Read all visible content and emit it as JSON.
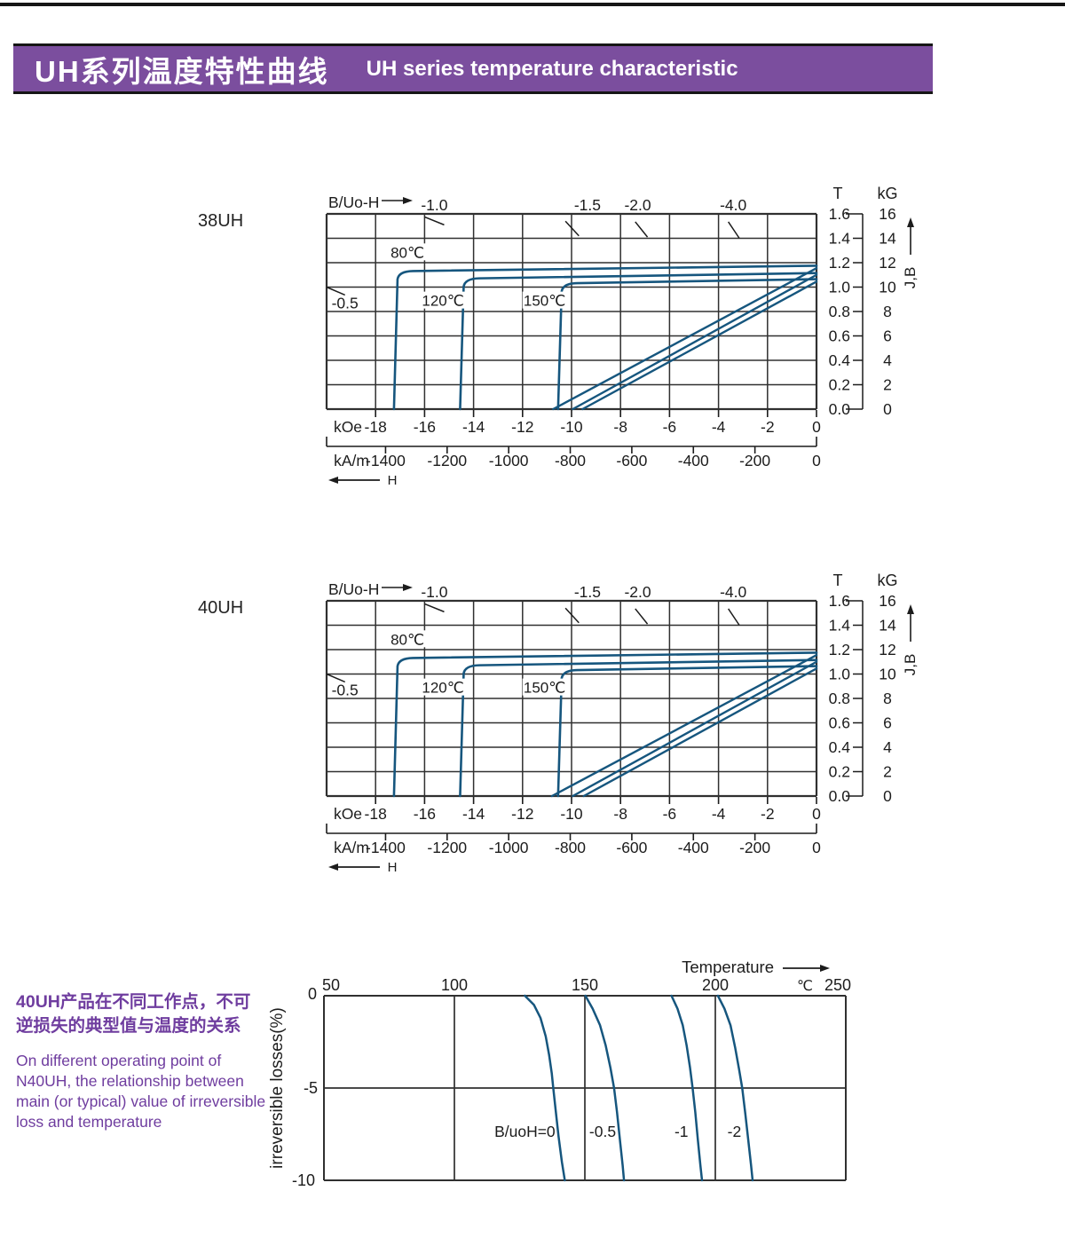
{
  "header": {
    "title_cn": "UH系列温度特性曲线",
    "title_en": "UH series temperature characteristic"
  },
  "colors": {
    "header_purple": "#7b4e9e",
    "note_purple": "#6f3d9f",
    "curve_blue": "#16567e",
    "grid_dark": "#303030"
  },
  "note": {
    "cn_lines": [
      "40UH产品在不同工作点，不可",
      "逆损失的典型值与温度的关系"
    ],
    "en_lines": [
      "On different operating point of",
      "N40UH,  the relationship between",
      "main (or typical) value of irreversible",
      "loss and temperature"
    ]
  },
  "chart_data": [
    {
      "type": "line",
      "id": "bh-38uh",
      "title": "38UH",
      "top_axis_label": "B/Uo-H",
      "x_axis": {
        "primary_unit": "kOe",
        "primary_ticks": [
          -18,
          -16,
          -14,
          -12,
          -10,
          -8,
          -6,
          -4,
          -2,
          0
        ],
        "secondary_unit": "kA/m",
        "secondary_ticks": [
          -1400,
          -1200,
          -1000,
          -800,
          -600,
          -400,
          -200,
          0
        ],
        "arrow_label": "H",
        "xlim_kOe": [
          -20,
          0
        ]
      },
      "y_axis": {
        "left_unit": "T",
        "left_ticks": [
          "1.6",
          "1.4",
          "1.2",
          "1.0",
          "0.8",
          "0.6",
          "0.4",
          "0.2",
          "0.0"
        ],
        "right_unit": "kG",
        "right_ticks": [
          "16",
          "14",
          "12",
          "10",
          "8",
          "6",
          "4",
          "2",
          "0"
        ],
        "arrow_label": "J,B",
        "ylim_T": [
          0,
          1.6
        ]
      },
      "load_lines": [
        {
          "label": "-1.0",
          "label_x_kOe": -15.6,
          "tick": [
            -16.0,
            1.575,
            -15.2,
            1.51
          ]
        },
        {
          "label": "-1.5",
          "label_x_kOe": -9.35,
          "tick": [
            -10.25,
            1.54,
            -9.7,
            1.42
          ]
        },
        {
          "label": "-2.0",
          "label_x_kOe": -7.3,
          "tick": [
            -7.4,
            1.535,
            -6.9,
            1.41
          ]
        },
        {
          "label": "-4.0",
          "label_x_kOe": -3.4,
          "tick": [
            -3.6,
            1.535,
            -3.15,
            1.4
          ]
        },
        {
          "label": "-0.5",
          "label_pos": [
            -19.25,
            0.87
          ],
          "tick": [
            -20.0,
            1.0,
            -19.25,
            0.935
          ]
        }
      ],
      "series": [
        {
          "name": "80℃",
          "label_pos": [
            -16.7,
            1.285
          ],
          "j_curve": {
            "leg_bottom_kOe": -17.25,
            "knee_kOe": -17.05,
            "j_at_knee_T": 1.13,
            "j_at_H0_T": 1.175
          },
          "b_line": {
            "h_at_B0_kOe": -10.75,
            "br_T": 1.155
          }
        },
        {
          "name": "120℃",
          "label_pos": [
            -15.25,
            0.89
          ],
          "j_curve": {
            "leg_bottom_kOe": -14.55,
            "knee_kOe": -14.35,
            "j_at_knee_T": 1.07,
            "j_at_H0_T": 1.115
          },
          "b_line": {
            "h_at_B0_kOe": -9.95,
            "br_T": 1.1
          }
        },
        {
          "name": "150℃",
          "label_pos": [
            -11.1,
            0.89
          ],
          "j_curve": {
            "leg_bottom_kOe": -10.55,
            "knee_kOe": -10.35,
            "j_at_knee_T": 1.03,
            "j_at_H0_T": 1.065
          },
          "b_line": {
            "h_at_B0_kOe": -9.55,
            "br_T": 1.045
          }
        }
      ]
    },
    {
      "type": "line",
      "id": "bh-40uh",
      "title": "40UH",
      "top_axis_label": "B/Uo-H",
      "x_axis": {
        "primary_unit": "kOe",
        "primary_ticks": [
          -18,
          -16,
          -14,
          -12,
          -10,
          -8,
          -6,
          -4,
          -2,
          0
        ],
        "secondary_unit": "kA/m",
        "secondary_ticks": [
          -1400,
          -1200,
          -1000,
          -800,
          -600,
          -400,
          -200,
          0
        ],
        "arrow_label": "H",
        "xlim_kOe": [
          -20,
          0
        ]
      },
      "y_axis": {
        "left_unit": "T",
        "left_ticks": [
          "1.6",
          "1.4",
          "1.2",
          "1.0",
          "0.8",
          "0.6",
          "0.4",
          "0.2",
          "0.0"
        ],
        "right_unit": "kG",
        "right_ticks": [
          "16",
          "14",
          "12",
          "10",
          "8",
          "6",
          "4",
          "2",
          "0"
        ],
        "arrow_label": "J,B",
        "ylim_T": [
          0,
          1.6
        ]
      },
      "load_lines": [
        {
          "label": "-1.0",
          "label_x_kOe": -15.6,
          "tick": [
            -16.0,
            1.575,
            -15.2,
            1.51
          ]
        },
        {
          "label": "-1.5",
          "label_x_kOe": -9.35,
          "tick": [
            -10.25,
            1.54,
            -9.7,
            1.42
          ]
        },
        {
          "label": "-2.0",
          "label_x_kOe": -7.3,
          "tick": [
            -7.4,
            1.535,
            -6.9,
            1.41
          ]
        },
        {
          "label": "-4.0",
          "label_x_kOe": -3.4,
          "tick": [
            -3.6,
            1.535,
            -3.15,
            1.4
          ]
        },
        {
          "label": "-0.5",
          "label_pos": [
            -19.25,
            0.87
          ],
          "tick": [
            -20.0,
            1.0,
            -19.25,
            0.935
          ]
        }
      ],
      "series": [
        {
          "name": "80℃",
          "label_pos": [
            -16.7,
            1.285
          ],
          "j_curve": {
            "leg_bottom_kOe": -17.25,
            "knee_kOe": -17.05,
            "j_at_knee_T": 1.13,
            "j_at_H0_T": 1.175
          },
          "b_line": {
            "h_at_B0_kOe": -10.8,
            "br_T": 1.155
          }
        },
        {
          "name": "120℃",
          "label_pos": [
            -15.25,
            0.89
          ],
          "j_curve": {
            "leg_bottom_kOe": -14.55,
            "knee_kOe": -14.35,
            "j_at_knee_T": 1.07,
            "j_at_H0_T": 1.115
          },
          "b_line": {
            "h_at_B0_kOe": -9.95,
            "br_T": 1.1
          }
        },
        {
          "name": "150℃",
          "label_pos": [
            -11.1,
            0.89
          ],
          "j_curve": {
            "leg_bottom_kOe": -10.55,
            "knee_kOe": -10.35,
            "j_at_knee_T": 1.03,
            "j_at_H0_T": 1.065
          },
          "b_line": {
            "h_at_B0_kOe": -9.5,
            "br_T": 1.045
          }
        }
      ]
    },
    {
      "type": "line",
      "id": "loss-40uh",
      "top_axis_label": "Temperature",
      "x_axis": {
        "unit": "℃",
        "ticks": [
          50,
          100,
          150,
          200,
          250
        ],
        "range": [
          50,
          250
        ]
      },
      "y_axis": {
        "label": "irreversible  losses(%)",
        "ticks": [
          "0",
          "-5",
          "-10"
        ],
        "range": [
          -10,
          0
        ]
      },
      "series": [
        {
          "label": "B/uoH=0",
          "label_pos": [
            127,
            -7.35
          ],
          "points": [
            [
              127,
              0
            ],
            [
              130.5,
              -0.5
            ],
            [
              133,
              -1.2
            ],
            [
              135,
              -2.2
            ],
            [
              136.3,
              -3.2
            ],
            [
              137.3,
              -4.2
            ],
            [
              137.9,
              -5
            ],
            [
              138.8,
              -6.2
            ],
            [
              139.9,
              -7.6
            ],
            [
              141.2,
              -9
            ],
            [
              142.3,
              -10
            ]
          ]
        },
        {
          "label": "-0.5",
          "label_pos": [
            156.8,
            -7.35
          ],
          "points": [
            [
              150.2,
              0
            ],
            [
              153,
              -0.7
            ],
            [
              155.8,
              -1.6
            ],
            [
              158,
              -2.7
            ],
            [
              159.8,
              -3.9
            ],
            [
              161.2,
              -5
            ],
            [
              162.3,
              -6.3
            ],
            [
              163.5,
              -7.9
            ],
            [
              164.5,
              -9.2
            ],
            [
              165,
              -10
            ]
          ]
        },
        {
          "label": "-1",
          "label_pos": [
            187,
            -7.35
          ],
          "points": [
            [
              183.2,
              0
            ],
            [
              185.5,
              -0.7
            ],
            [
              187.5,
              -1.6
            ],
            [
              189,
              -2.7
            ],
            [
              190.3,
              -3.9
            ],
            [
              191.3,
              -5
            ],
            [
              192.3,
              -6.3
            ],
            [
              193.3,
              -7.8
            ],
            [
              194.3,
              -9.2
            ],
            [
              194.9,
              -10
            ]
          ]
        },
        {
          "label": "-2",
          "label_pos": [
            207.3,
            -7.35
          ],
          "points": [
            [
              201,
              0
            ],
            [
              203.5,
              -0.7
            ],
            [
              205.8,
              -1.6
            ],
            [
              207.6,
              -2.8
            ],
            [
              209.1,
              -4
            ],
            [
              210.3,
              -5
            ],
            [
              211.5,
              -6.4
            ],
            [
              212.7,
              -7.9
            ],
            [
              213.7,
              -9.2
            ],
            [
              214.3,
              -10
            ]
          ]
        }
      ]
    }
  ]
}
